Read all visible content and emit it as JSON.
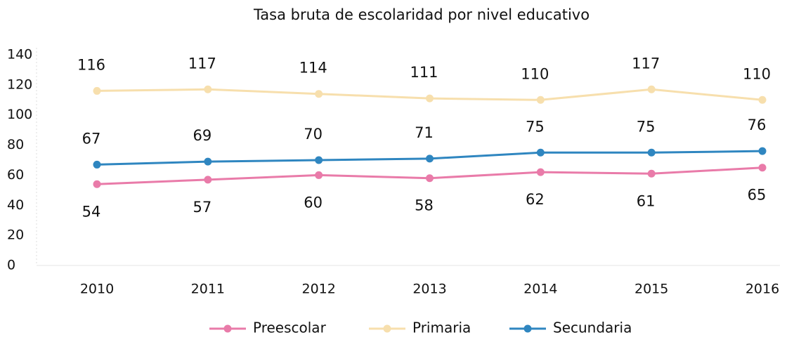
{
  "chart_data": {
    "type": "line",
    "title": "Tasa bruta de escolaridad por nivel educativo",
    "categories": [
      "2010",
      "2011",
      "2012",
      "2013",
      "2014",
      "2015",
      "2016"
    ],
    "series": [
      {
        "name": "Preescolar",
        "color": "#e97ba9",
        "values": [
          54,
          57,
          60,
          58,
          62,
          61,
          65
        ]
      },
      {
        "name": "Primaria",
        "color": "#f7dfad",
        "values": [
          116,
          117,
          114,
          111,
          110,
          117,
          110
        ]
      },
      {
        "name": "Secundaria",
        "color": "#2f86c0",
        "values": [
          67,
          69,
          70,
          71,
          75,
          75,
          76
        ]
      }
    ],
    "ylim": [
      0,
      140
    ],
    "yticks": [
      0,
      20,
      40,
      60,
      80,
      100,
      120,
      140
    ],
    "legend": "bottom"
  }
}
